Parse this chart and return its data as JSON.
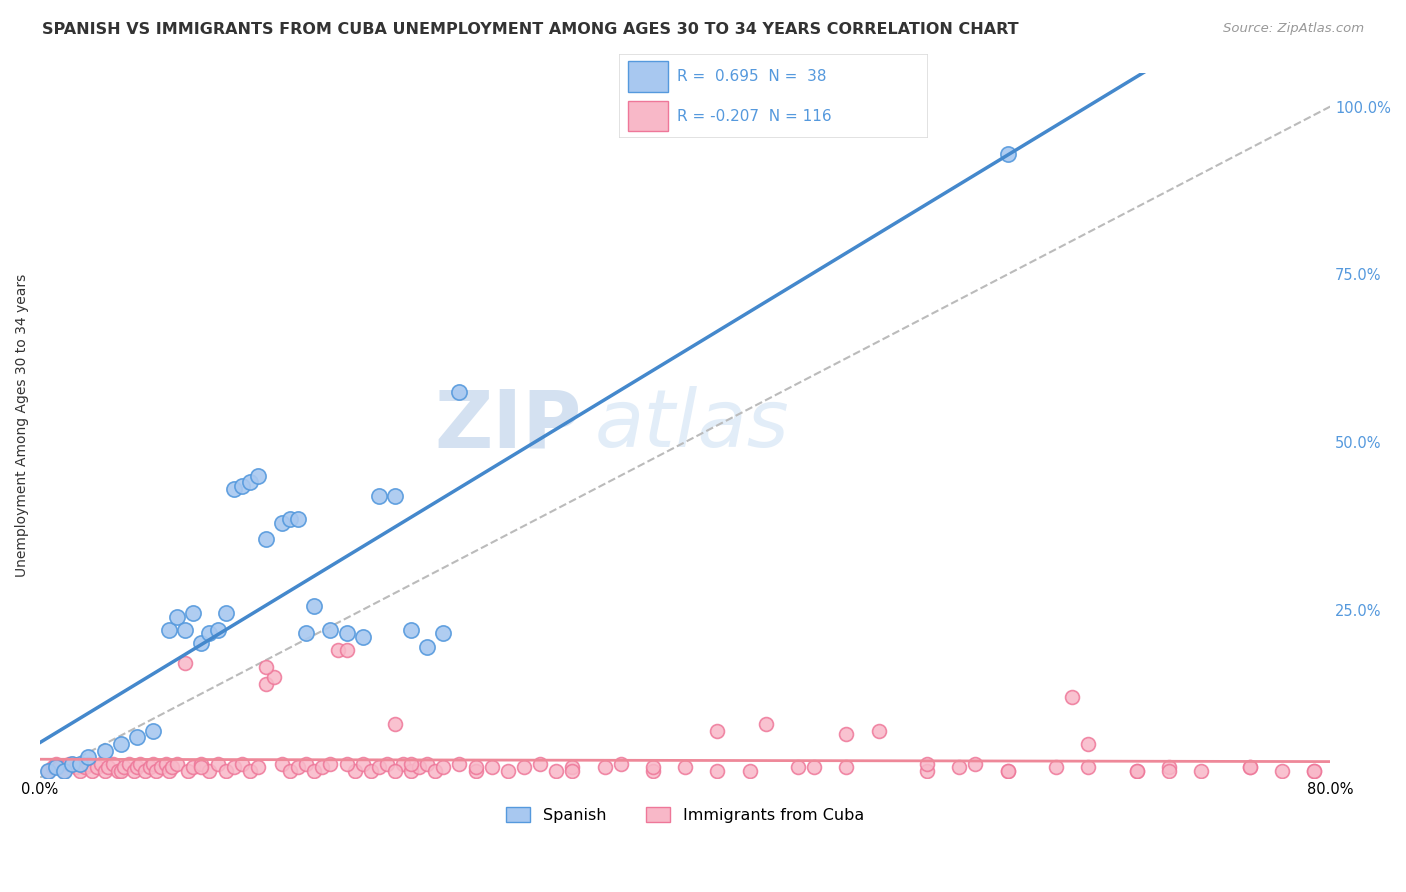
{
  "title": "SPANISH VS IMMIGRANTS FROM CUBA UNEMPLOYMENT AMONG AGES 30 TO 34 YEARS CORRELATION CHART",
  "source": "Source: ZipAtlas.com",
  "ylabel": "Unemployment Among Ages 30 to 34 years",
  "xlim": [
    0.0,
    0.8
  ],
  "ylim": [
    0.0,
    1.05
  ],
  "blue_color": "#A8C8F0",
  "blue_edge_color": "#5599DD",
  "pink_color": "#F8B8C8",
  "pink_edge_color": "#EE7799",
  "blue_line_color": "#4488CC",
  "pink_line_color": "#EE8899",
  "ref_line_color": "#BBBBBB",
  "legend_label1": "Spanish",
  "legend_label2": "Immigrants from Cuba",
  "watermark_zip": "ZIP",
  "watermark_atlas": "atlas",
  "title_fontsize": 11.5,
  "axis_label_fontsize": 10,
  "tick_fontsize": 10.5,
  "right_tick_color": "#5599DD",
  "blue_scatter_x": [
    0.005,
    0.01,
    0.015,
    0.02,
    0.025,
    0.03,
    0.04,
    0.05,
    0.06,
    0.07,
    0.08,
    0.085,
    0.09,
    0.095,
    0.1,
    0.105,
    0.11,
    0.115,
    0.12,
    0.125,
    0.13,
    0.135,
    0.14,
    0.15,
    0.155,
    0.16,
    0.165,
    0.17,
    0.18,
    0.19,
    0.2,
    0.21,
    0.22,
    0.23,
    0.24,
    0.25,
    0.26,
    0.6
  ],
  "blue_scatter_y": [
    0.01,
    0.015,
    0.01,
    0.02,
    0.02,
    0.03,
    0.04,
    0.05,
    0.06,
    0.07,
    0.22,
    0.24,
    0.22,
    0.245,
    0.2,
    0.215,
    0.22,
    0.245,
    0.43,
    0.435,
    0.44,
    0.45,
    0.355,
    0.38,
    0.385,
    0.385,
    0.215,
    0.255,
    0.22,
    0.215,
    0.21,
    0.42,
    0.42,
    0.22,
    0.195,
    0.215,
    0.575,
    0.93
  ],
  "pink_scatter_x": [
    0.005,
    0.008,
    0.01,
    0.012,
    0.015,
    0.018,
    0.02,
    0.022,
    0.025,
    0.028,
    0.03,
    0.032,
    0.035,
    0.038,
    0.04,
    0.042,
    0.045,
    0.048,
    0.05,
    0.052,
    0.055,
    0.058,
    0.06,
    0.062,
    0.065,
    0.068,
    0.07,
    0.072,
    0.075,
    0.078,
    0.08,
    0.082,
    0.085,
    0.09,
    0.092,
    0.095,
    0.1,
    0.105,
    0.11,
    0.115,
    0.12,
    0.125,
    0.13,
    0.135,
    0.14,
    0.145,
    0.15,
    0.155,
    0.16,
    0.165,
    0.17,
    0.175,
    0.18,
    0.185,
    0.19,
    0.195,
    0.2,
    0.205,
    0.21,
    0.215,
    0.22,
    0.225,
    0.23,
    0.235,
    0.24,
    0.245,
    0.25,
    0.26,
    0.27,
    0.28,
    0.29,
    0.3,
    0.31,
    0.32,
    0.33,
    0.35,
    0.36,
    0.38,
    0.4,
    0.42,
    0.44,
    0.45,
    0.47,
    0.5,
    0.52,
    0.55,
    0.57,
    0.58,
    0.6,
    0.63,
    0.65,
    0.68,
    0.7,
    0.72,
    0.75,
    0.77,
    0.79,
    0.64,
    0.68,
    0.1,
    0.14,
    0.19,
    0.22,
    0.23,
    0.27,
    0.33,
    0.38,
    0.42,
    0.48,
    0.55,
    0.6,
    0.65,
    0.7,
    0.75,
    0.79,
    0.5
  ],
  "pink_scatter_y": [
    0.01,
    0.015,
    0.02,
    0.015,
    0.01,
    0.02,
    0.02,
    0.015,
    0.01,
    0.015,
    0.02,
    0.01,
    0.015,
    0.02,
    0.01,
    0.015,
    0.02,
    0.01,
    0.01,
    0.015,
    0.02,
    0.01,
    0.015,
    0.02,
    0.01,
    0.015,
    0.02,
    0.01,
    0.015,
    0.02,
    0.01,
    0.015,
    0.02,
    0.17,
    0.01,
    0.015,
    0.02,
    0.01,
    0.02,
    0.01,
    0.015,
    0.02,
    0.01,
    0.015,
    0.14,
    0.15,
    0.02,
    0.01,
    0.015,
    0.02,
    0.01,
    0.015,
    0.02,
    0.19,
    0.19,
    0.01,
    0.02,
    0.01,
    0.015,
    0.02,
    0.08,
    0.02,
    0.01,
    0.015,
    0.02,
    0.01,
    0.015,
    0.02,
    0.01,
    0.015,
    0.01,
    0.015,
    0.02,
    0.01,
    0.015,
    0.015,
    0.02,
    0.01,
    0.015,
    0.07,
    0.01,
    0.08,
    0.015,
    0.015,
    0.07,
    0.01,
    0.015,
    0.02,
    0.01,
    0.015,
    0.05,
    0.01,
    0.015,
    0.01,
    0.015,
    0.01,
    0.01,
    0.12,
    0.01,
    0.015,
    0.165,
    0.02,
    0.01,
    0.02,
    0.015,
    0.01,
    0.015,
    0.01,
    0.015,
    0.02,
    0.01,
    0.015,
    0.01,
    0.015,
    0.01,
    0.065
  ]
}
